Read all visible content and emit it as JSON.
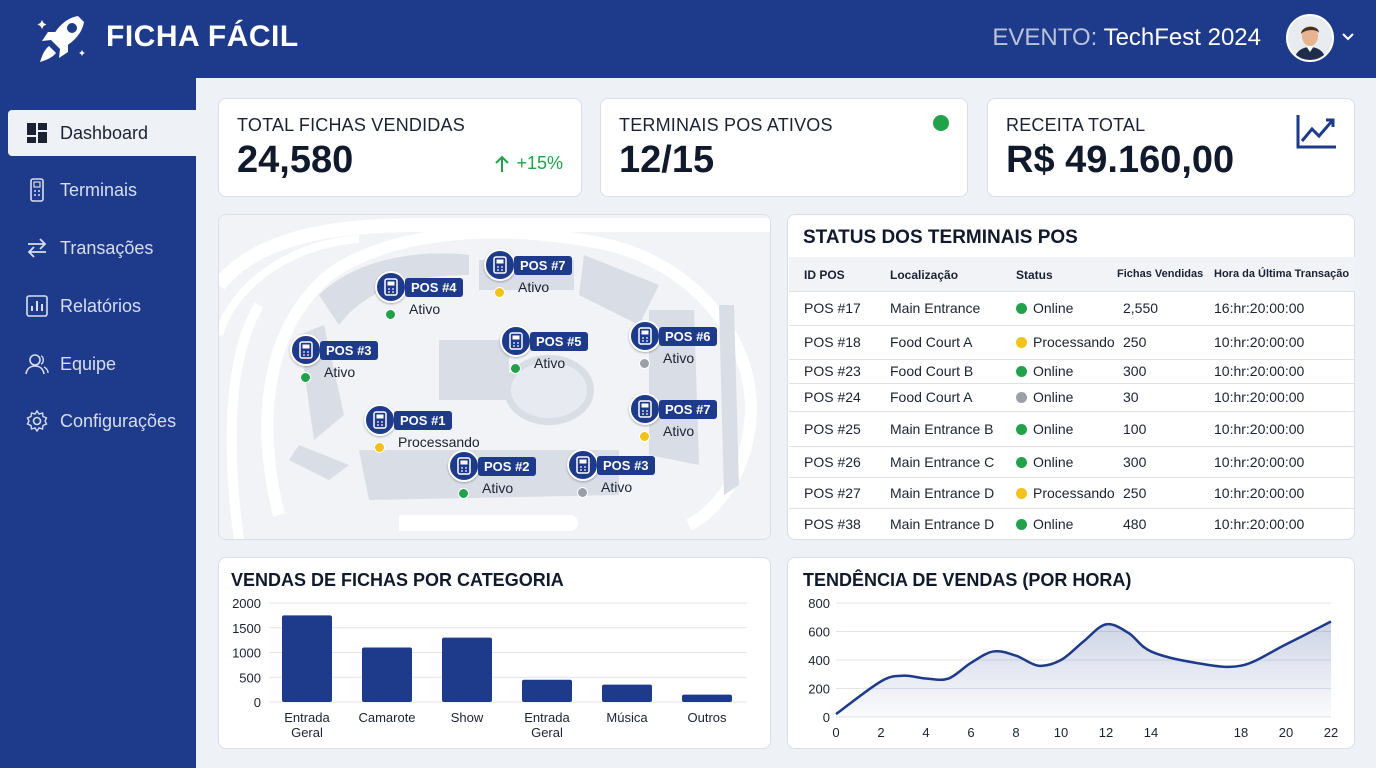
{
  "header": {
    "title": "FICHA FÁCIL",
    "event_label": "EVENTO:",
    "event_name": "TechFest 2024"
  },
  "sidebar": {
    "items": [
      {
        "label": "Dashboard",
        "icon": "dashboard-icon",
        "active": true
      },
      {
        "label": "Terminais",
        "icon": "terminal-icon",
        "active": false
      },
      {
        "label": "Transações",
        "icon": "transactions-icon",
        "active": false
      },
      {
        "label": "Relatórios",
        "icon": "reports-icon",
        "active": false
      },
      {
        "label": "Equipe",
        "icon": "team-icon",
        "active": false
      },
      {
        "label": "Configurações",
        "icon": "settings-icon",
        "active": false
      }
    ]
  },
  "kpis": {
    "fichas": {
      "label": "TOTAL FICHAS VENDIDAS",
      "value": "24,580",
      "delta": "+15%"
    },
    "terminais": {
      "label": "TERMINAIS POS ATIVOS",
      "value": "12/15"
    },
    "receita": {
      "label": "RECEITA TOTAL",
      "value": "R$ 49.160,00"
    }
  },
  "colors": {
    "primary": "#1e3a8a",
    "online": "#22a14b",
    "processing": "#f2c21b",
    "offline": "#9aa0a8"
  },
  "map": {
    "pins": [
      {
        "label": "POS #7",
        "status": "Ativo",
        "color": "#f2c21b"
      },
      {
        "label": "POS #4",
        "status": "Ativo",
        "color": "#22a14b"
      },
      {
        "label": "POS #3",
        "status": "Ativo",
        "color": "#22a14b"
      },
      {
        "label": "POS #5",
        "status": "Ativo",
        "color": "#22a14b"
      },
      {
        "label": "POS #6",
        "status": "Ativo",
        "color": "#9aa0a8"
      },
      {
        "label": "POS #1",
        "status": "Processando",
        "color": "#f2c21b"
      },
      {
        "label": "POS #7",
        "status": "Ativo",
        "color": "#f2c21b"
      },
      {
        "label": "POS #2",
        "status": "Ativo",
        "color": "#22a14b"
      },
      {
        "label": "POS #3",
        "status": "Ativo",
        "color": "#9aa0a8"
      }
    ]
  },
  "table": {
    "title": "STATUS DOS TERMINAIS POS",
    "headers": [
      "ID POS",
      "Localização",
      "Status",
      "Fichas Vendidas",
      "Hora da Última Transação"
    ],
    "rows": [
      {
        "id": "POS #17",
        "loc": "Main Entrance",
        "status": "Online",
        "color": "#22a14b",
        "fichas": "2,550",
        "hora": "16:hr:20:00:00"
      },
      {
        "id": "POS #18",
        "loc": "Food Court A",
        "status": "Processando",
        "color": "#f2c21b",
        "fichas": "250",
        "hora": "10:hr:20:00:00"
      },
      {
        "id": "POS #23",
        "loc": "Food Court B",
        "status": "Online",
        "color": "#22a14b",
        "fichas": "300",
        "hora": "10:hr:20:00:00"
      },
      {
        "id": "POS #24",
        "loc": "Food Court A",
        "status": "Online",
        "color": "#9aa0a8",
        "fichas": "30",
        "hora": "10:hr:20:00:00"
      },
      {
        "id": "POS #25",
        "loc": "Main Entrance B",
        "status": "Online",
        "color": "#22a14b",
        "fichas": "100",
        "hora": "10:hr:20:00:00"
      },
      {
        "id": "POS #26",
        "loc": "Main Entrance C",
        "status": "Online",
        "color": "#22a14b",
        "fichas": "300",
        "hora": "10:hr:20:00:00"
      },
      {
        "id": "POS #27",
        "loc": "Main Entrance D",
        "status": "Processando",
        "color": "#f2c21b",
        "fichas": "250",
        "hora": "10:hr:20:00:00"
      },
      {
        "id": "POS #38",
        "loc": "Main Entrance D",
        "status": "Online",
        "color": "#22a14b",
        "fichas": "480",
        "hora": "10:hr:20:00:00"
      }
    ]
  },
  "chart_data": [
    {
      "type": "bar",
      "title": "VENDAS DE FICHAS POR CATEGORIA",
      "categories": [
        "Entrada Geral",
        "Camarote",
        "Show",
        "Entrada Geral",
        "Música",
        "Outros"
      ],
      "values": [
        1750,
        1100,
        1300,
        450,
        350,
        150
      ],
      "ylim": [
        0,
        2000
      ],
      "yticks": [
        0,
        500,
        1000,
        1500,
        2000
      ],
      "color": "#1e3a8a"
    },
    {
      "type": "area",
      "title": "TENDÊNCIA DE VENDAS (POR HORA)",
      "x": [
        0,
        2,
        3,
        4,
        5,
        6,
        7,
        8,
        9,
        10,
        11,
        12,
        13,
        14,
        16,
        18,
        20,
        22
      ],
      "values": [
        20,
        250,
        290,
        270,
        270,
        380,
        460,
        430,
        360,
        400,
        530,
        650,
        590,
        460,
        380,
        360,
        510,
        670
      ],
      "xlim": [
        0,
        22
      ],
      "ylim": [
        0,
        800
      ],
      "xticks": [
        0,
        2,
        4,
        6,
        8,
        10,
        12,
        14,
        18,
        20,
        22
      ],
      "yticks": [
        0,
        200,
        400,
        600,
        800
      ],
      "color": "#1e3a8a"
    }
  ]
}
